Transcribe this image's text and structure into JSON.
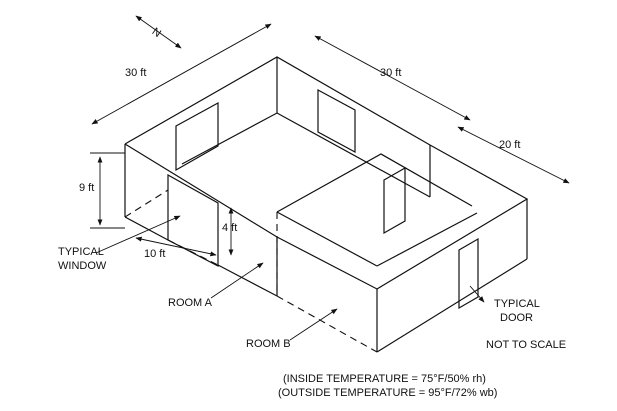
{
  "labels": {
    "north": "N",
    "dim_top_left": "30 ft",
    "dim_top_right": "30 ft",
    "dim_right": "20 ft",
    "dim_height": "9 ft",
    "dim_window_height": "4 ft",
    "dim_window_width": "10 ft",
    "typical_window": [
      "TYPICAL",
      "WINDOW"
    ],
    "room_a": "ROOM A",
    "room_b": "ROOM B",
    "typical_door": [
      "TYPICAL",
      "DOOR"
    ],
    "not_to_scale": "NOT TO SCALE",
    "inside_temperature": "(INSIDE TEMPERATURE = 75°F/50% rh)",
    "outside_temperature": "(OUTSIDE TEMPERATURE = 95°F/72% wb)"
  }
}
